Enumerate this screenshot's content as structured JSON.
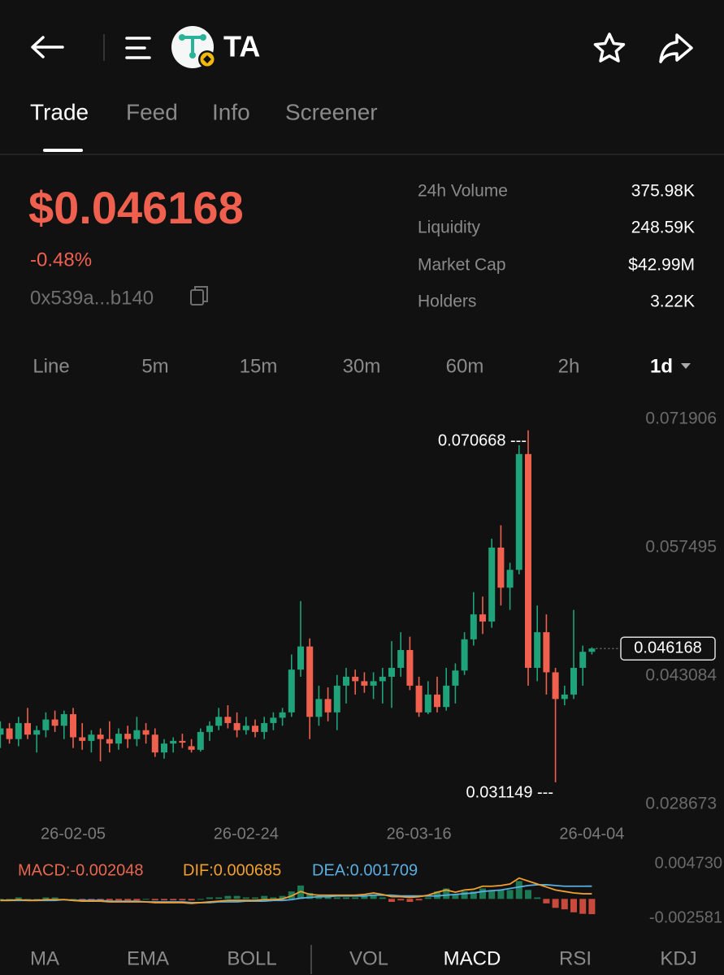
{
  "header": {
    "title": "TA"
  },
  "tabs": [
    "Trade",
    "Feed",
    "Info",
    "Screener"
  ],
  "price": {
    "value": "$0.046168",
    "change": "-0.48%",
    "address": "0x539a...b140"
  },
  "stats": [
    {
      "label": "24h Volume",
      "value": "375.98K"
    },
    {
      "label": "Liquidity",
      "value": "248.59K"
    },
    {
      "label": "Market Cap",
      "value": "$42.99M"
    },
    {
      "label": "Holders",
      "value": "3.22K"
    }
  ],
  "intervals": [
    "Line",
    "5m",
    "15m",
    "30m",
    "60m",
    "2h",
    "1d"
  ],
  "indicators": [
    "MA",
    "EMA",
    "BOLL",
    "VOL",
    "MACD",
    "RSI",
    "KDJ"
  ],
  "chart_data": [
    {
      "type": "candlestick",
      "up_color": "#1fa37a",
      "down_color": "#f0604f",
      "categories": [
        null,
        null,
        null,
        null,
        null,
        null,
        null,
        null,
        "26-02-05",
        null,
        null,
        null,
        null,
        null,
        null,
        null,
        null,
        null,
        null,
        null,
        null,
        null,
        null,
        null,
        null,
        null,
        null,
        "26-02-24",
        null,
        null,
        null,
        null,
        null,
        null,
        null,
        null,
        null,
        null,
        null,
        null,
        null,
        null,
        null,
        null,
        null,
        null,
        "26-03-16",
        null,
        null,
        null,
        null,
        null,
        null,
        null,
        null,
        null,
        null,
        null,
        null,
        null,
        null,
        null,
        null,
        null,
        null,
        "26-04-04"
      ],
      "open": [
        0.0365,
        0.0372,
        0.036,
        0.0378,
        0.0365,
        0.037,
        0.0382,
        0.0375,
        0.0388,
        0.0362,
        0.0358,
        0.0365,
        0.036,
        0.0355,
        0.0366,
        0.036,
        0.037,
        0.0365,
        0.0345,
        0.0355,
        0.0358,
        0.0352,
        0.0348,
        0.0368,
        0.0375,
        0.0385,
        0.0378,
        0.037,
        0.0375,
        0.0368,
        0.0378,
        0.0384,
        0.039,
        0.0438,
        0.0464,
        0.0385,
        0.0405,
        0.039,
        0.042,
        0.043,
        0.0425,
        0.042,
        0.0425,
        0.043,
        0.044,
        0.046,
        0.042,
        0.039,
        0.041,
        0.0396,
        0.042,
        0.0437,
        0.0472,
        0.05,
        0.0492,
        0.0575,
        0.053,
        0.055,
        0.068,
        0.044,
        0.048,
        0.0435,
        0.0405,
        0.041,
        0.044,
        0.0458
      ],
      "high": [
        0.038,
        0.0378,
        0.0385,
        0.0395,
        0.0375,
        0.039,
        0.0392,
        0.0392,
        0.0395,
        0.0378,
        0.037,
        0.0372,
        0.038,
        0.0372,
        0.0375,
        0.0385,
        0.0378,
        0.0372,
        0.036,
        0.0362,
        0.0366,
        0.036,
        0.0372,
        0.038,
        0.0395,
        0.0398,
        0.039,
        0.0385,
        0.0382,
        0.0385,
        0.039,
        0.0395,
        0.0455,
        0.0515,
        0.0473,
        0.042,
        0.0418,
        0.0432,
        0.044,
        0.0438,
        0.0435,
        0.0435,
        0.044,
        0.047,
        0.048,
        0.0475,
        0.043,
        0.0425,
        0.043,
        0.044,
        0.0445,
        0.048,
        0.0525,
        0.052,
        0.0585,
        0.06,
        0.0558,
        0.069,
        0.070668,
        0.051,
        0.05,
        0.044,
        0.042,
        0.0505,
        0.0465,
        0.0463
      ],
      "low": [
        0.035,
        0.0355,
        0.0352,
        0.036,
        0.0345,
        0.0362,
        0.0368,
        0.036,
        0.035,
        0.0348,
        0.0345,
        0.0335,
        0.0345,
        0.0348,
        0.035,
        0.0352,
        0.0355,
        0.034,
        0.0338,
        0.0345,
        0.035,
        0.0345,
        0.0346,
        0.0358,
        0.037,
        0.0372,
        0.0362,
        0.0365,
        0.0362,
        0.036,
        0.037,
        0.0375,
        0.0385,
        0.043,
        0.036,
        0.0375,
        0.038,
        0.037,
        0.04,
        0.041,
        0.0412,
        0.0405,
        0.04,
        0.0395,
        0.043,
        0.0415,
        0.0385,
        0.0388,
        0.039,
        0.0392,
        0.04,
        0.0432,
        0.0465,
        0.0478,
        0.0485,
        0.051,
        0.0505,
        0.0545,
        0.042,
        0.0425,
        0.041,
        0.031149,
        0.0398,
        0.0405,
        0.042,
        0.0455
      ],
      "close": [
        0.0372,
        0.036,
        0.0378,
        0.0365,
        0.037,
        0.0382,
        0.0375,
        0.0388,
        0.0362,
        0.0358,
        0.0365,
        0.036,
        0.0355,
        0.0366,
        0.036,
        0.037,
        0.0365,
        0.0345,
        0.0355,
        0.0358,
        0.0356,
        0.0348,
        0.0368,
        0.0375,
        0.0385,
        0.0378,
        0.037,
        0.0375,
        0.0368,
        0.0378,
        0.0384,
        0.039,
        0.0438,
        0.0464,
        0.0385,
        0.0405,
        0.039,
        0.042,
        0.043,
        0.0425,
        0.042,
        0.0425,
        0.043,
        0.044,
        0.046,
        0.042,
        0.039,
        0.041,
        0.0396,
        0.042,
        0.0437,
        0.0472,
        0.05,
        0.0492,
        0.0575,
        0.053,
        0.055,
        0.068,
        0.044,
        0.048,
        0.0435,
        0.0405,
        0.041,
        0.044,
        0.0458,
        0.046168
      ],
      "ylim": [
        0.028673,
        0.071906
      ],
      "yticks": [
        0.071906,
        0.057495,
        0.043084,
        0.028673
      ],
      "annotations": [
        "0.070668 ---",
        "0.031149 ---"
      ]
    },
    {
      "type": "macd",
      "legend": [
        "MACD:-0.002048",
        "DIF:0.000685",
        "DEA:0.001709"
      ],
      "legend_colors": [
        "#e8674f",
        "#f0a030",
        "#5aaee0"
      ],
      "up_color": "#1b7a55",
      "down_color": "#c94a3c",
      "histogram": [
        0,
        0,
        0.0002,
        0,
        0,
        0.0002,
        0.0002,
        0,
        0,
        -0.0002,
        -0.0002,
        -0.0002,
        -0.0002,
        -0.0002,
        -0.0002,
        -0.0002,
        0,
        -0.0002,
        -0.0002,
        -0.0002,
        -0.0002,
        -0.0002,
        0,
        0.0002,
        0.0002,
        0.0004,
        0.0004,
        0.0002,
        0.0002,
        0.0004,
        0.0002,
        0.0004,
        0.001,
        0.0018,
        0.0008,
        0.0004,
        0.0004,
        0.0002,
        0.0002,
        0.0002,
        0.0004,
        0.0006,
        0.0002,
        -0.0004,
        -0.0002,
        -0.0004,
        -0.0002,
        0.0002,
        0.001,
        0.0014,
        0.0006,
        0.001,
        0.001,
        0.0014,
        0.0012,
        0.0012,
        0.0012,
        0.0024,
        0.0012,
        0.0002,
        -0.0006,
        -0.0012,
        -0.0014,
        -0.0018,
        -0.002,
        -0.002048
      ],
      "dif": [
        -0.0002,
        -0.0002,
        -0.0001,
        -0.0002,
        -0.0002,
        -0.0001,
        -0.0001,
        -0.0001,
        -0.0002,
        -0.0003,
        -0.0003,
        -0.0003,
        -0.0004,
        -0.0004,
        -0.0004,
        -0.0004,
        -0.0004,
        -0.0005,
        -0.0005,
        -0.0005,
        -0.0005,
        -0.0006,
        -0.0005,
        -0.0004,
        -0.0003,
        -0.0002,
        -0.0002,
        -0.0002,
        -0.0002,
        -0.0001,
        -0.0001,
        0,
        0.0004,
        0.001,
        0.0006,
        0.0005,
        0.0005,
        0.0005,
        0.0005,
        0.0005,
        0.0006,
        0.0008,
        0.0006,
        0.0003,
        0.0003,
        0.0002,
        0.0003,
        0.0005,
        0.0009,
        0.0012,
        0.0009,
        0.0012,
        0.0013,
        0.0017,
        0.0017,
        0.0018,
        0.002,
        0.0028,
        0.0024,
        0.002,
        0.0016,
        0.0012,
        0.001,
        0.0008,
        0.0007,
        0.000685
      ],
      "dea": [
        -0.0002,
        -0.0002,
        -0.0002,
        -0.0002,
        -0.0002,
        -0.0002,
        -0.0002,
        -0.0001,
        -0.0002,
        -0.0002,
        -0.0002,
        -0.0002,
        -0.0003,
        -0.0003,
        -0.0003,
        -0.0003,
        -0.0004,
        -0.0004,
        -0.0004,
        -0.0004,
        -0.0004,
        -0.0005,
        -0.0005,
        -0.0005,
        -0.0004,
        -0.0004,
        -0.0004,
        -0.0003,
        -0.0003,
        -0.0003,
        -0.0002,
        -0.0002,
        -0.0001,
        0.0001,
        0.0002,
        0.0003,
        0.0003,
        0.0004,
        0.0004,
        0.0004,
        0.0004,
        0.0005,
        0.0005,
        0.0005,
        0.0004,
        0.0004,
        0.0004,
        0.0004,
        0.0004,
        0.0005,
        0.0006,
        0.0007,
        0.0008,
        0.001,
        0.0011,
        0.0012,
        0.0014,
        0.0016,
        0.0018,
        0.0019,
        0.0019,
        0.0018,
        0.0017,
        0.0017,
        0.0017,
        0.001709
      ],
      "ylim": [
        -0.002581,
        0.00473
      ],
      "yticks": [
        {
          "value": 0.00473,
          "label": "0.004730"
        },
        -0.002581
      ]
    }
  ]
}
